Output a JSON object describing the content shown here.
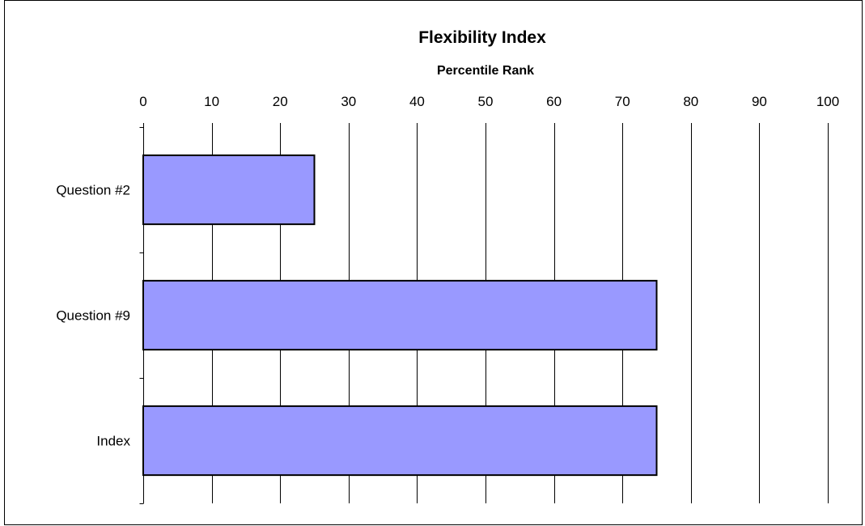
{
  "chart_data": {
    "type": "bar",
    "orientation": "horizontal",
    "title": "Flexibility Index",
    "xlabel": "Percentile Rank",
    "ylabel": "",
    "categories": [
      "Question #2",
      "Question #9",
      "Index"
    ],
    "values": [
      25,
      75,
      75
    ],
    "xlim": [
      0,
      100
    ],
    "x_ticks": [
      "0",
      "10",
      "20",
      "30",
      "40",
      "50",
      "60",
      "70",
      "80",
      "90",
      "100"
    ],
    "x_tick_values": [
      0,
      10,
      20,
      30,
      40,
      50,
      60,
      70,
      80,
      90,
      100
    ],
    "x_axis_position": "top",
    "grid": true,
    "legend": "none",
    "bar_color": "#9999ff",
    "line_color": "#000000",
    "background_color": "#ffffff"
  }
}
